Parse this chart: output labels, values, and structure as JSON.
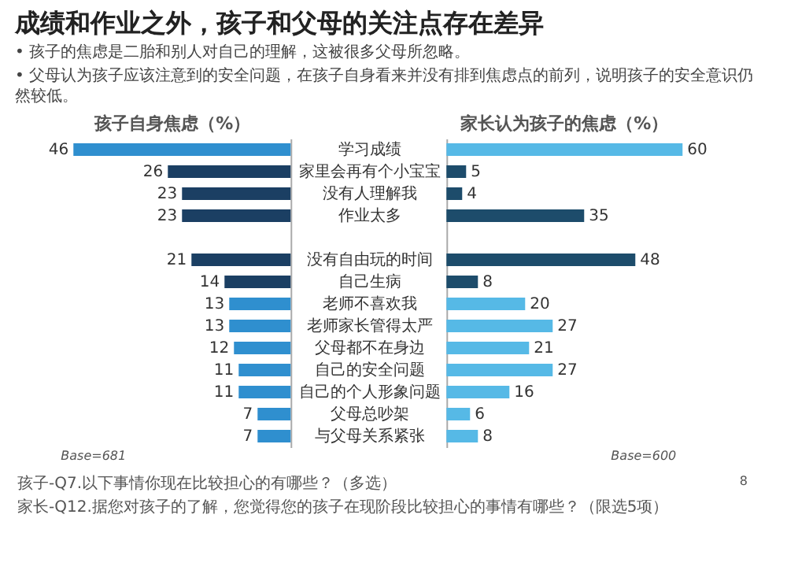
{
  "chart_data": [
    {
      "type": "bar",
      "orientation": "horizontal",
      "title": "孩子自身焦虑（%）",
      "categories": [
        "学习成绩",
        "家里会再有个小宝宝",
        "没有人理解我",
        "作业太多",
        null,
        "没有自由玩的时间",
        "自己生病",
        "老师不喜欢我",
        "老师家长管得太严",
        "父母都不在身边",
        "自己的安全问题",
        "自己的个人形象问题",
        "父母总吵架",
        "与父母关系紧张"
      ],
      "values": [
        46,
        26,
        23,
        23,
        null,
        21,
        14,
        13,
        13,
        12,
        11,
        11,
        7,
        7
      ],
      "colors": [
        "#2f8fcf",
        "#1b3f63",
        "#1b3f63",
        "#1b3f63",
        "#1b3f63",
        "#1b3f63",
        "#1b3f63",
        "#2f8fcf",
        "#2f8fcf",
        "#2f8fcf",
        "#2f8fcf",
        "#2f8fcf",
        "#2f8fcf",
        "#2f8fcf"
      ],
      "data_labels": true,
      "tick_labels": "y",
      "grid": false,
      "annotations": [
        "成绩和作业之外，孩子和父母的关注点存在差异",
        "• 孩子的焦虑是二胎和别人对自己的理解，这被很多父母所忽略。",
        "• 父母认为孩子应该注意到的安全问题，在孩子自身看来并没有排到焦虑点的前列，说明孩子的安全意识仍然较低。",
        "Base=681",
        "孩子-Q7.以下事情你现在比较担心的有哪些？（多选）"
      ]
    },
    {
      "type": "bar",
      "orientation": "horizontal",
      "title": "家长认为孩子的焦虑（%）",
      "values": [
        60,
        5,
        4,
        35,
        null,
        48,
        8,
        20,
        27,
        21,
        27,
        16,
        6,
        8
      ],
      "colors": [
        "#56b9e6",
        "#1d4c6b",
        "#1d4c6b",
        "#1d4c6b",
        "#1d4c6b",
        "#1d4c6b",
        "#1d4c6b",
        "#56b9e6",
        "#56b9e6",
        "#56b9e6",
        "#56b9e6",
        "#56b9e6",
        "#56b9e6",
        "#56b9e6"
      ],
      "data_labels": true,
      "tick_labels": false,
      "grid": false,
      "annotations": [
        "Base=600",
        "家长-Q12.据您对孩子的了解，您觉得您的孩子在现阶段比较担心的事情有哪些？（限选5项）",
        "8"
      ]
    }
  ]
}
